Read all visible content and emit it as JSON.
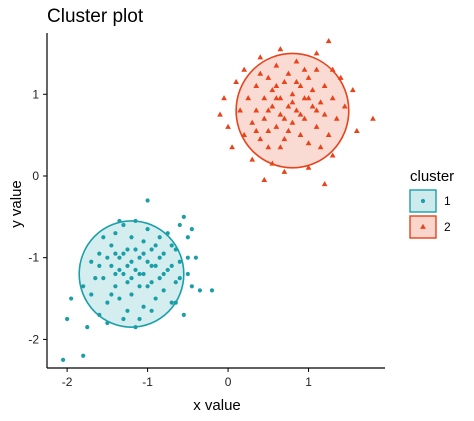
{
  "chart_data": {
    "type": "scatter",
    "title": "Cluster plot",
    "xlabel": "x value",
    "ylabel": "y value",
    "xlim": [
      -2.25,
      1.95
    ],
    "ylim": [
      -2.35,
      1.75
    ],
    "x_ticks": [
      -2,
      -1,
      0,
      1
    ],
    "y_ticks": [
      -2,
      -1,
      0,
      1
    ],
    "x_tick_labels": [
      "-2",
      "-1",
      "0",
      "1"
    ],
    "y_tick_labels": [
      "-2",
      "-1",
      "0",
      "1"
    ],
    "grid": false,
    "legend": {
      "title": "cluster",
      "position": "right",
      "entries": [
        "1",
        "2"
      ]
    },
    "series": [
      {
        "name": "1",
        "marker": "circle",
        "color": "#1A9FA9",
        "fill": "#CDEBED",
        "center": [
          -1.2,
          -1.2
        ],
        "ellipse_radius": [
          0.65,
          0.65
        ],
        "points": [
          [
            -2.05,
            -2.25
          ],
          [
            -1.8,
            -2.2
          ],
          [
            -2.0,
            -1.75
          ],
          [
            -1.75,
            -1.85
          ],
          [
            -1.95,
            -1.5
          ],
          [
            -1.7,
            -1.45
          ],
          [
            -1.8,
            -1.35
          ],
          [
            -1.6,
            -1.7
          ],
          [
            -1.7,
            -1.05
          ],
          [
            -1.6,
            -0.95
          ],
          [
            -1.55,
            -1.25
          ],
          [
            -1.5,
            -1.55
          ],
          [
            -1.45,
            -1.1
          ],
          [
            -1.45,
            -0.85
          ],
          [
            -1.4,
            -1.35
          ],
          [
            -1.4,
            -0.7
          ],
          [
            -1.35,
            -1.0
          ],
          [
            -1.35,
            -1.5
          ],
          [
            -1.3,
            -1.2
          ],
          [
            -1.3,
            -0.6
          ],
          [
            -1.3,
            -1.75
          ],
          [
            -1.25,
            -0.9
          ],
          [
            -1.25,
            -1.3
          ],
          [
            -1.2,
            -1.05
          ],
          [
            -1.2,
            -0.75
          ],
          [
            -1.2,
            -1.45
          ],
          [
            -1.15,
            -1.15
          ],
          [
            -1.15,
            -0.55
          ],
          [
            -1.15,
            -1.85
          ],
          [
            -1.1,
            -1.0
          ],
          [
            -1.1,
            -1.35
          ],
          [
            -1.05,
            -0.8
          ],
          [
            -1.05,
            -1.2
          ],
          [
            -1.05,
            -1.6
          ],
          [
            -1.0,
            -0.65
          ],
          [
            -1.0,
            -1.05
          ],
          [
            -0.95,
            -1.3
          ],
          [
            -0.95,
            -0.9
          ],
          [
            -0.9,
            -1.5
          ],
          [
            -0.9,
            -1.1
          ],
          [
            -0.85,
            -0.75
          ],
          [
            -0.85,
            -1.25
          ],
          [
            -0.8,
            -1.4
          ],
          [
            -0.8,
            -0.95
          ],
          [
            -0.75,
            -1.15
          ],
          [
            -0.7,
            -0.85
          ],
          [
            -0.7,
            -1.55
          ],
          [
            -0.65,
            -1.3
          ],
          [
            -0.6,
            -1.05
          ],
          [
            -0.55,
            -0.5
          ],
          [
            -0.5,
            -0.75
          ],
          [
            -0.5,
            -1.2
          ],
          [
            -0.45,
            -1.35
          ],
          [
            -0.4,
            -1.0
          ],
          [
            -0.35,
            -1.4
          ],
          [
            -0.55,
            -1.7
          ],
          [
            -1.0,
            -0.3
          ],
          [
            -0.2,
            -1.4
          ],
          [
            -1.5,
            -1.8
          ],
          [
            -1.25,
            -1.65
          ],
          [
            -1.35,
            -0.55
          ],
          [
            -1.1,
            -1.75
          ],
          [
            -0.95,
            -1.65
          ],
          [
            -1.55,
            -0.75
          ],
          [
            -1.65,
            -1.25
          ],
          [
            -1.6,
            -1.1
          ],
          [
            -1.5,
            -1.0
          ],
          [
            -1.45,
            -1.45
          ],
          [
            -1.4,
            -1.2
          ],
          [
            -1.3,
            -0.95
          ],
          [
            -1.25,
            -1.1
          ],
          [
            -1.2,
            -1.25
          ],
          [
            -1.15,
            -0.9
          ],
          [
            -1.1,
            -1.2
          ],
          [
            -1.05,
            -0.95
          ],
          [
            -1.0,
            -1.35
          ],
          [
            -0.95,
            -1.1
          ],
          [
            -0.9,
            -0.85
          ],
          [
            -0.85,
            -1.0
          ],
          [
            -0.8,
            -1.2
          ],
          [
            -0.75,
            -0.7
          ],
          [
            -0.7,
            -1.1
          ],
          [
            -0.65,
            -0.9
          ],
          [
            -0.6,
            -1.25
          ],
          [
            -0.65,
            -1.55
          ],
          [
            -0.5,
            -1.0
          ],
          [
            -0.45,
            -0.65
          ],
          [
            -0.6,
            -0.6
          ],
          [
            -1.4,
            -0.95
          ],
          [
            -1.35,
            -1.15
          ]
        ]
      },
      {
        "name": "2",
        "marker": "triangle",
        "color": "#E8431B",
        "fill": "#F9D5CB",
        "center": [
          0.8,
          0.8
        ],
        "ellipse_radius": [
          0.7,
          0.7
        ],
        "points": [
          [
            -0.1,
            0.75
          ],
          [
            -0.05,
            0.95
          ],
          [
            0.0,
            0.6
          ],
          [
            0.05,
            0.35
          ],
          [
            0.1,
            1.15
          ],
          [
            0.15,
            0.8
          ],
          [
            0.2,
            0.5
          ],
          [
            0.2,
            1.3
          ],
          [
            0.25,
            0.95
          ],
          [
            0.3,
            0.65
          ],
          [
            0.3,
            0.2
          ],
          [
            0.35,
            1.1
          ],
          [
            0.35,
            0.8
          ],
          [
            0.4,
            1.45
          ],
          [
            0.4,
            0.45
          ],
          [
            0.45,
            0.95
          ],
          [
            0.45,
            0.7
          ],
          [
            0.5,
            1.2
          ],
          [
            0.5,
            0.35
          ],
          [
            0.55,
            0.85
          ],
          [
            0.55,
            1.05
          ],
          [
            0.6,
            0.6
          ],
          [
            0.6,
            1.35
          ],
          [
            0.65,
            0.75
          ],
          [
            0.65,
            0.95
          ],
          [
            0.7,
            1.15
          ],
          [
            0.7,
            0.45
          ],
          [
            0.7,
            0.05
          ],
          [
            0.75,
            0.85
          ],
          [
            0.75,
            1.25
          ],
          [
            0.8,
            0.65
          ],
          [
            0.8,
            1.0
          ],
          [
            0.85,
            0.8
          ],
          [
            0.85,
            1.4
          ],
          [
            0.9,
            0.5
          ],
          [
            0.9,
            1.1
          ],
          [
            0.95,
            0.7
          ],
          [
            0.95,
            0.95
          ],
          [
            1.0,
            1.2
          ],
          [
            1.0,
            0.4
          ],
          [
            1.05,
            0.85
          ],
          [
            1.05,
            1.05
          ],
          [
            1.1,
            0.6
          ],
          [
            1.1,
            1.3
          ],
          [
            1.15,
            0.9
          ],
          [
            1.2,
            0.75
          ],
          [
            1.2,
            1.1
          ],
          [
            1.25,
            0.5
          ],
          [
            1.25,
            1.65
          ],
          [
            1.3,
            0.95
          ],
          [
            1.3,
            0.25
          ],
          [
            1.35,
            0.7
          ],
          [
            1.4,
            1.2
          ],
          [
            1.45,
            0.85
          ],
          [
            1.55,
            1.05
          ],
          [
            1.6,
            0.55
          ],
          [
            1.8,
            0.7
          ],
          [
            0.45,
            -0.05
          ],
          [
            1.2,
            -0.1
          ],
          [
            1.0,
            0.1
          ],
          [
            0.55,
            0.15
          ],
          [
            0.65,
            1.55
          ],
          [
            1.1,
            1.5
          ],
          [
            0.4,
            1.25
          ],
          [
            0.5,
            0.55
          ],
          [
            0.6,
            0.95
          ],
          [
            0.7,
            0.7
          ],
          [
            0.8,
            0.9
          ],
          [
            0.9,
            0.75
          ],
          [
            1.0,
            0.95
          ],
          [
            1.1,
            0.8
          ],
          [
            0.75,
            0.55
          ],
          [
            0.85,
            1.15
          ],
          [
            0.95,
            1.3
          ],
          [
            0.6,
            1.1
          ],
          [
            0.5,
            0.8
          ],
          [
            0.65,
            0.35
          ],
          [
            1.15,
            0.35
          ],
          [
            1.3,
            1.3
          ],
          [
            0.35,
            0.55
          ]
        ]
      }
    ]
  }
}
